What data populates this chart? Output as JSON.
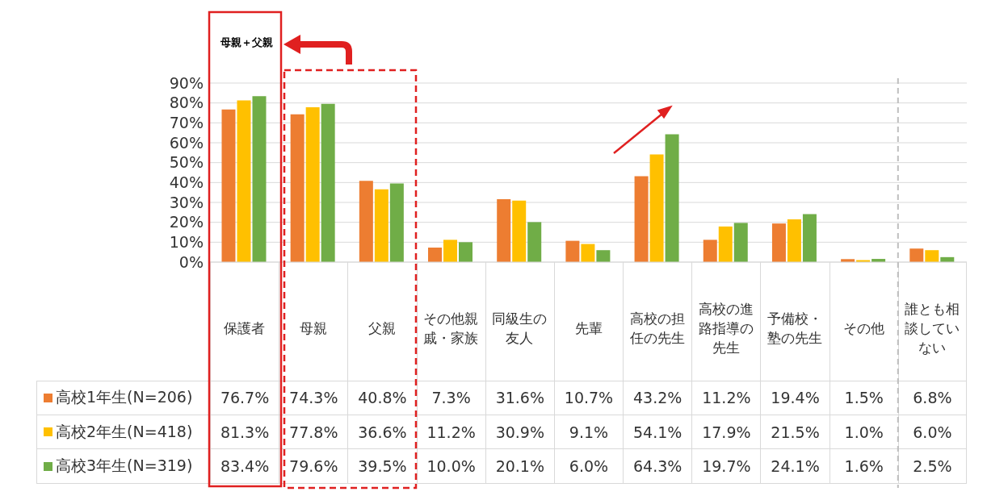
{
  "chart_data": {
    "type": "bar",
    "categories": [
      "保護者",
      "母親",
      "父親",
      "その他親戚・家族",
      "同級生の友人",
      "先輩",
      "高校の担任の先生",
      "高校の進路指導の先生",
      "予備校・塾の先生",
      "その他",
      "誰とも相談していない"
    ],
    "series": [
      {
        "name": "高校1年生(N=206)",
        "color": "#ed7d31",
        "values": [
          76.7,
          74.3,
          40.8,
          7.3,
          31.6,
          10.7,
          43.2,
          11.2,
          19.4,
          1.5,
          6.8
        ],
        "value_labels": [
          "76.7%",
          "74.3%",
          "40.8%",
          "7.3%",
          "31.6%",
          "10.7%",
          "43.2%",
          "11.2%",
          "19.4%",
          "1.5%",
          "6.8%"
        ]
      },
      {
        "name": "高校2年生(N=418)",
        "color": "#ffc000",
        "values": [
          81.3,
          77.8,
          36.6,
          11.2,
          30.9,
          9.1,
          54.1,
          17.9,
          21.5,
          1.0,
          6.0
        ],
        "value_labels": [
          "81.3%",
          "77.8%",
          "36.6%",
          "11.2%",
          "30.9%",
          "9.1%",
          "54.1%",
          "17.9%",
          "21.5%",
          "1.0%",
          "6.0%"
        ]
      },
      {
        "name": "高校3年生(N=319)",
        "color": "#70ad47",
        "values": [
          83.4,
          79.6,
          39.5,
          10.0,
          20.1,
          6.0,
          64.3,
          19.7,
          24.1,
          1.6,
          2.5
        ],
        "value_labels": [
          "83.4%",
          "79.6%",
          "39.5%",
          "10.0%",
          "20.1%",
          "6.0%",
          "64.3%",
          "19.7%",
          "24.1%",
          "1.6%",
          "2.5%"
        ]
      }
    ],
    "ylim": [
      0,
      90
    ],
    "yticks": [
      {
        "value": 0,
        "label": "0%"
      },
      {
        "value": 10,
        "label": "10%"
      },
      {
        "value": 20,
        "label": "20%"
      },
      {
        "value": 30,
        "label": "30%"
      },
      {
        "value": 40,
        "label": "40%"
      },
      {
        "value": 50,
        "label": "50%"
      },
      {
        "value": 60,
        "label": "60%"
      },
      {
        "value": 70,
        "label": "70%"
      },
      {
        "value": 80,
        "label": "80%"
      },
      {
        "value": 90,
        "label": "90%"
      }
    ],
    "grid": "y",
    "ref_lines": [
      {
        "axis": "x",
        "value": "誰とも相談していない",
        "color": "#bfbfbf",
        "line_style": "dashed"
      }
    ],
    "legend": "bottom left",
    "annotations": [
      "母親＋父親"
    ]
  }
}
